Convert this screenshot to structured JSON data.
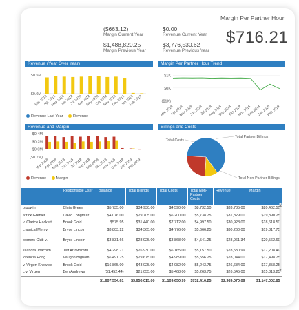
{
  "kpis": [
    {
      "value": "($663.12)",
      "label": "Margin Current Year"
    },
    {
      "value": "$1,488,820.25",
      "label": "Margin Previous Year"
    },
    {
      "value": "$0.00",
      "label": "Revenue Current Year"
    },
    {
      "value": "$3,776,530.62",
      "label": "Revenue Previous Year"
    }
  ],
  "margin_per_partner_hour": {
    "title": "Margin Per Partner Hour",
    "value": "$716.21"
  },
  "panels": {
    "revenue_yoy": "Revenue (Year Over Year)",
    "margin_trend": "Margin Per Partner Hour Trend",
    "revenue_margin": "Revenue and Margin",
    "billings_costs": "Billings and Costs"
  },
  "months": [
    "Mar 2018",
    "Apr 2018",
    "May 2018",
    "Jun 2018",
    "Jul 2018",
    "Aug 2018",
    "Sep 2018",
    "Oct 2018",
    "Nov 2018",
    "Dec 2018",
    "Jan 2019",
    "Feb 2019"
  ],
  "colors": {
    "blue": "#2f7fc1",
    "yellow": "#f2c811",
    "red": "#c0392b",
    "header": "#2f7fc1",
    "green": "#4caf50"
  },
  "chart_data": [
    {
      "type": "bar",
      "title": "Revenue (Year Over Year)",
      "categories": [
        "Mar 2018",
        "Apr 2018",
        "May 2018",
        "Jun 2018",
        "Jul 2018",
        "Aug 2018",
        "Sep 2018",
        "Oct 2018",
        "Nov 2018",
        "Dec 2018",
        "Jan 2019",
        "Feb 2019"
      ],
      "y_ticks": [
        "$0.5M",
        "$0.0M"
      ],
      "series": [
        {
          "name": "Revenue Last Year",
          "values": [
            0,
            0,
            0,
            0,
            0,
            0,
            0,
            0,
            0,
            0,
            0,
            0
          ]
        },
        {
          "name": "Revenue",
          "values": [
            0.42,
            0.45,
            0.44,
            0.43,
            0.44,
            0.45,
            0.45,
            0.43,
            0.44,
            0.41,
            0.02,
            0.01
          ]
        }
      ]
    },
    {
      "type": "line",
      "title": "Margin Per Partner Hour Trend",
      "categories": [
        "Mar 2018",
        "Apr 2018",
        "May 2018",
        "Jun 2018",
        "Jul 2018",
        "Aug 2018",
        "Sep 2018",
        "Oct 2018",
        "Nov 2018",
        "Dec 2018",
        "Jan 2019",
        "Feb 2019"
      ],
      "y_ticks": [
        "$1K",
        "$0K",
        "($1K)"
      ],
      "ylim": [
        -1200,
        1400
      ],
      "series": [
        {
          "name": "",
          "values": [
            780,
            800,
            790,
            800,
            770,
            790,
            780,
            790,
            760,
            -150,
            300,
            -50
          ]
        }
      ]
    },
    {
      "type": "bar",
      "title": "Revenue and Margin",
      "categories": [
        "Mar 2018",
        "Apr 2018",
        "May 2018",
        "Jun 2018",
        "Jul 2018",
        "Aug 2018",
        "Sep 2018",
        "Oct 2018",
        "Nov 2018",
        "Dec 2018",
        "Jan 2019",
        "Feb 2019"
      ],
      "y_ticks": [
        "$0.4M",
        "$0.2M",
        "$0.0M",
        "($0.2M)"
      ],
      "ylim": [
        -0.2,
        0.4
      ],
      "series": [
        {
          "name": "Revenue",
          "values": [
            0.33,
            0.33,
            0.31,
            0.33,
            0.32,
            0.33,
            0.33,
            0.31,
            0.32,
            0.03,
            0.02,
            0.0
          ]
        },
        {
          "name": "Margin",
          "values": [
            0.19,
            0.2,
            0.19,
            0.17,
            0.2,
            0.19,
            0.2,
            0.21,
            0.23,
            0.01,
            0.02,
            0.01
          ]
        }
      ]
    },
    {
      "type": "pie",
      "title": "Billings and Costs",
      "series": [
        {
          "name": "Total Non-Partner Billings",
          "value": 64
        },
        {
          "name": "Total Partner Billings",
          "value": 11
        },
        {
          "name": "Total Costs",
          "value": 25
        }
      ]
    }
  ],
  "legends": {
    "yoy": [
      {
        "label": "Revenue Last Year",
        "color": "#2f7fc1"
      },
      {
        "label": "Revenue",
        "color": "#f2c811"
      }
    ],
    "rm": [
      {
        "label": "Revenue",
        "color": "#c0392b"
      },
      {
        "label": "Margin",
        "color": "#f2c811"
      }
    ]
  },
  "table": {
    "headers": [
      "",
      "Responsible User",
      "Balance",
      "Total Billings",
      "Total Costs",
      "Total Non-Partner Costs",
      "Revenue",
      "Margin"
    ],
    "rows": [
      [
        "otgowin",
        "Chris Green",
        "$5,735.00",
        "$34,930.00",
        "$4,590.00",
        "$8,732.50",
        "$33,785.00",
        "$20,462.50"
      ],
      [
        "arrick Grenier",
        "David Longmuir",
        "$4,076.00",
        "$29,705.00",
        "$6,200.00",
        "$5,738.75",
        "$31,829.00",
        "$19,890.25"
      ],
      [
        "v. Clarice Hackett",
        "Brook Gold",
        "$575.95",
        "$31,440.00",
        "$7,712.00",
        "$4,997.50",
        "$30,928.00",
        "$18,618.50"
      ],
      [
        "chanical Men v.",
        "Bryce Lincoln",
        "$3,803.22",
        "$34,365.00",
        "$4,776.00",
        "$5,666.25",
        "$30,260.00",
        "$19,817.75"
      ],
      [
        "oomers Club v.",
        "Bryce Lincoln",
        "$3,831.66",
        "$28,925.00",
        "$3,868.00",
        "$4,541.25",
        "$28,961.34",
        "$20,562.69"
      ],
      [
        "ssandra Joachim",
        "Jeff Arrowsmith",
        "$4,298.71",
        "$26,930.00",
        "$6,165.00",
        "$5,157.50",
        "$28,530.99",
        "$17,208.49"
      ],
      [
        "lorencia Hong",
        "Vaughn Bigham",
        "$6,491.75",
        "$29,675.00",
        "$4,989.00",
        "$5,556.25",
        "$28,044.00",
        "$17,498.75"
      ],
      [
        "v. Virgen Knowles",
        "Brook Gold",
        "$16,865.00",
        "$43,025.00",
        "$4,082.00",
        "$5,243.75",
        "$26,684.00",
        "$17,358.25"
      ],
      [
        "c.v. Virgen",
        "Ben Andrews",
        "($1,452.44)",
        "$21,055.00",
        "$5,468.00",
        "$5,263.75",
        "$26,545.00",
        "$15,813.25"
      ]
    ],
    "totals": [
      "",
      "",
      "$1,607,554.61",
      "$3,650,015.00",
      "$1,109,650.99",
      "$732,416.25",
      "$2,989,070.09",
      "$1,147,002.85"
    ]
  }
}
